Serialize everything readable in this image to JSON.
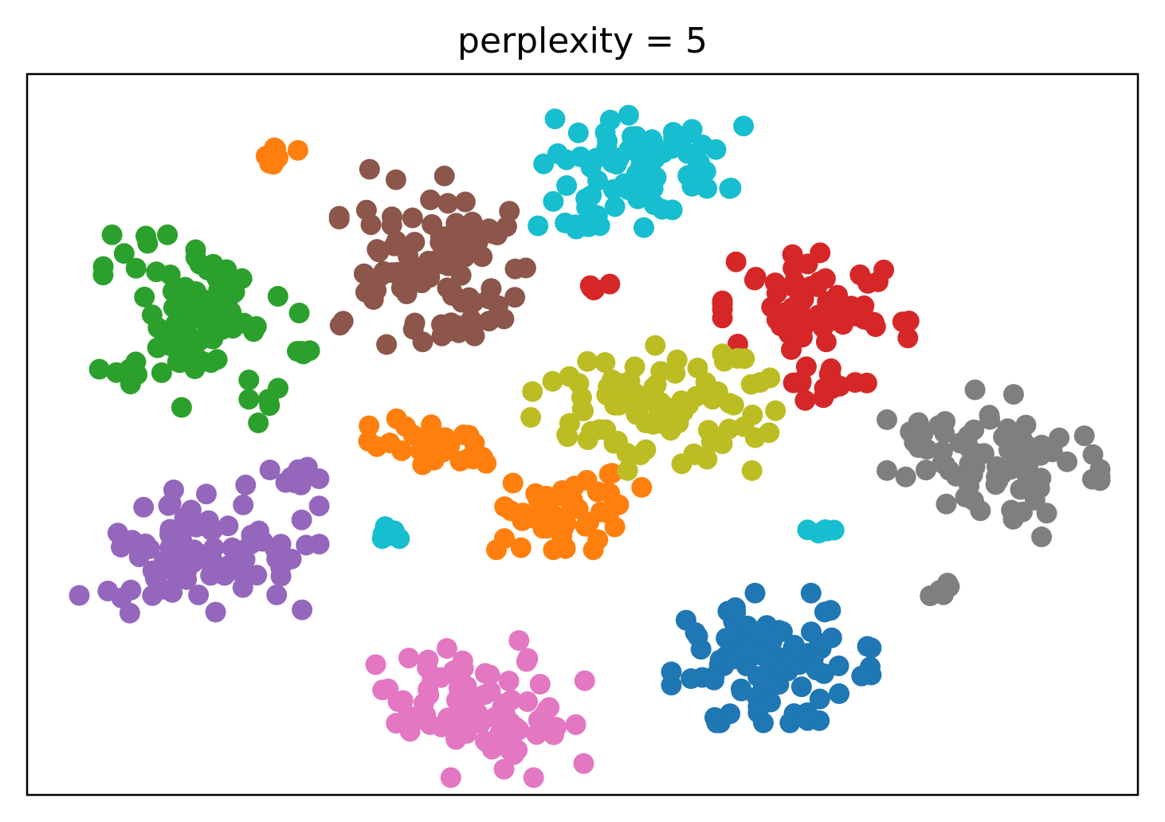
{
  "chart_data": {
    "type": "scatter",
    "title": "perplexity = 5",
    "xlabel": "",
    "ylabel": "",
    "xlim": [
      0,
      100
    ],
    "ylim": [
      0,
      100
    ],
    "grid": false,
    "legend": "none",
    "axis_ticks": "none",
    "series": [
      {
        "color": "#1f77b4",
        "clusters": [
          {
            "cx": 67.0,
            "cy": 19.0,
            "rx": 7.5,
            "ry": 7.5,
            "n": 95
          },
          {
            "cx": 70.5,
            "cy": 10.0,
            "rx": 1.0,
            "ry": 1.0,
            "n": 3
          }
        ]
      },
      {
        "color": "#ff7f0e",
        "clusters": [
          {
            "cx": 22.5,
            "cy": 88.0,
            "rx": 2.5,
            "ry": 1.8,
            "n": 10
          },
          {
            "cx": 36.5,
            "cy": 49.0,
            "rx": 4.8,
            "ry": 3.0,
            "n": 36
          },
          {
            "cx": 48.5,
            "cy": 40.0,
            "rx": 6.0,
            "ry": 5.0,
            "n": 52
          }
        ]
      },
      {
        "color": "#2ca02c",
        "clusters": [
          {
            "cx": 15.5,
            "cy": 64.5,
            "rx": 7.5,
            "ry": 11.0,
            "n": 92
          },
          {
            "cx": 25.0,
            "cy": 61.5,
            "rx": 0.7,
            "ry": 0.6,
            "n": 4
          }
        ]
      },
      {
        "color": "#d62728",
        "clusters": [
          {
            "cx": 71.0,
            "cy": 68.0,
            "rx": 7.0,
            "ry": 6.0,
            "n": 66
          },
          {
            "cx": 72.0,
            "cy": 57.0,
            "rx": 3.0,
            "ry": 2.0,
            "n": 16
          },
          {
            "cx": 51.5,
            "cy": 70.5,
            "rx": 1.2,
            "ry": 0.8,
            "n": 5
          }
        ]
      },
      {
        "color": "#9467bd",
        "clusters": [
          {
            "cx": 15.5,
            "cy": 34.0,
            "rx": 9.0,
            "ry": 7.5,
            "n": 84
          },
          {
            "cx": 24.0,
            "cy": 44.0,
            "rx": 2.0,
            "ry": 2.0,
            "n": 10
          }
        ]
      },
      {
        "color": "#8c564b",
        "clusters": [
          {
            "cx": 36.5,
            "cy": 73.0,
            "rx": 7.0,
            "ry": 11.5,
            "n": 92
          }
        ]
      },
      {
        "color": "#e377c2",
        "clusters": [
          {
            "cx": 40.0,
            "cy": 12.0,
            "rx": 8.5,
            "ry": 8.0,
            "n": 92
          }
        ]
      },
      {
        "color": "#7f7f7f",
        "clusters": [
          {
            "cx": 87.0,
            "cy": 46.0,
            "rx": 8.0,
            "ry": 8.5,
            "n": 76
          },
          {
            "cx": 82.5,
            "cy": 29.0,
            "rx": 1.0,
            "ry": 1.2,
            "n": 5
          }
        ]
      },
      {
        "color": "#bcbd22",
        "clusters": [
          {
            "cx": 56.5,
            "cy": 54.0,
            "rx": 9.5,
            "ry": 7.5,
            "n": 96
          }
        ]
      },
      {
        "color": "#17becf",
        "clusters": [
          {
            "cx": 55.5,
            "cy": 86.5,
            "rx": 7.5,
            "ry": 6.5,
            "n": 72
          },
          {
            "cx": 49.0,
            "cy": 79.0,
            "rx": 2.5,
            "ry": 0.8,
            "n": 7
          },
          {
            "cx": 32.5,
            "cy": 36.0,
            "rx": 1.5,
            "ry": 1.2,
            "n": 7
          },
          {
            "cx": 71.5,
            "cy": 36.8,
            "rx": 1.2,
            "ry": 0.7,
            "n": 5
          }
        ]
      }
    ]
  }
}
